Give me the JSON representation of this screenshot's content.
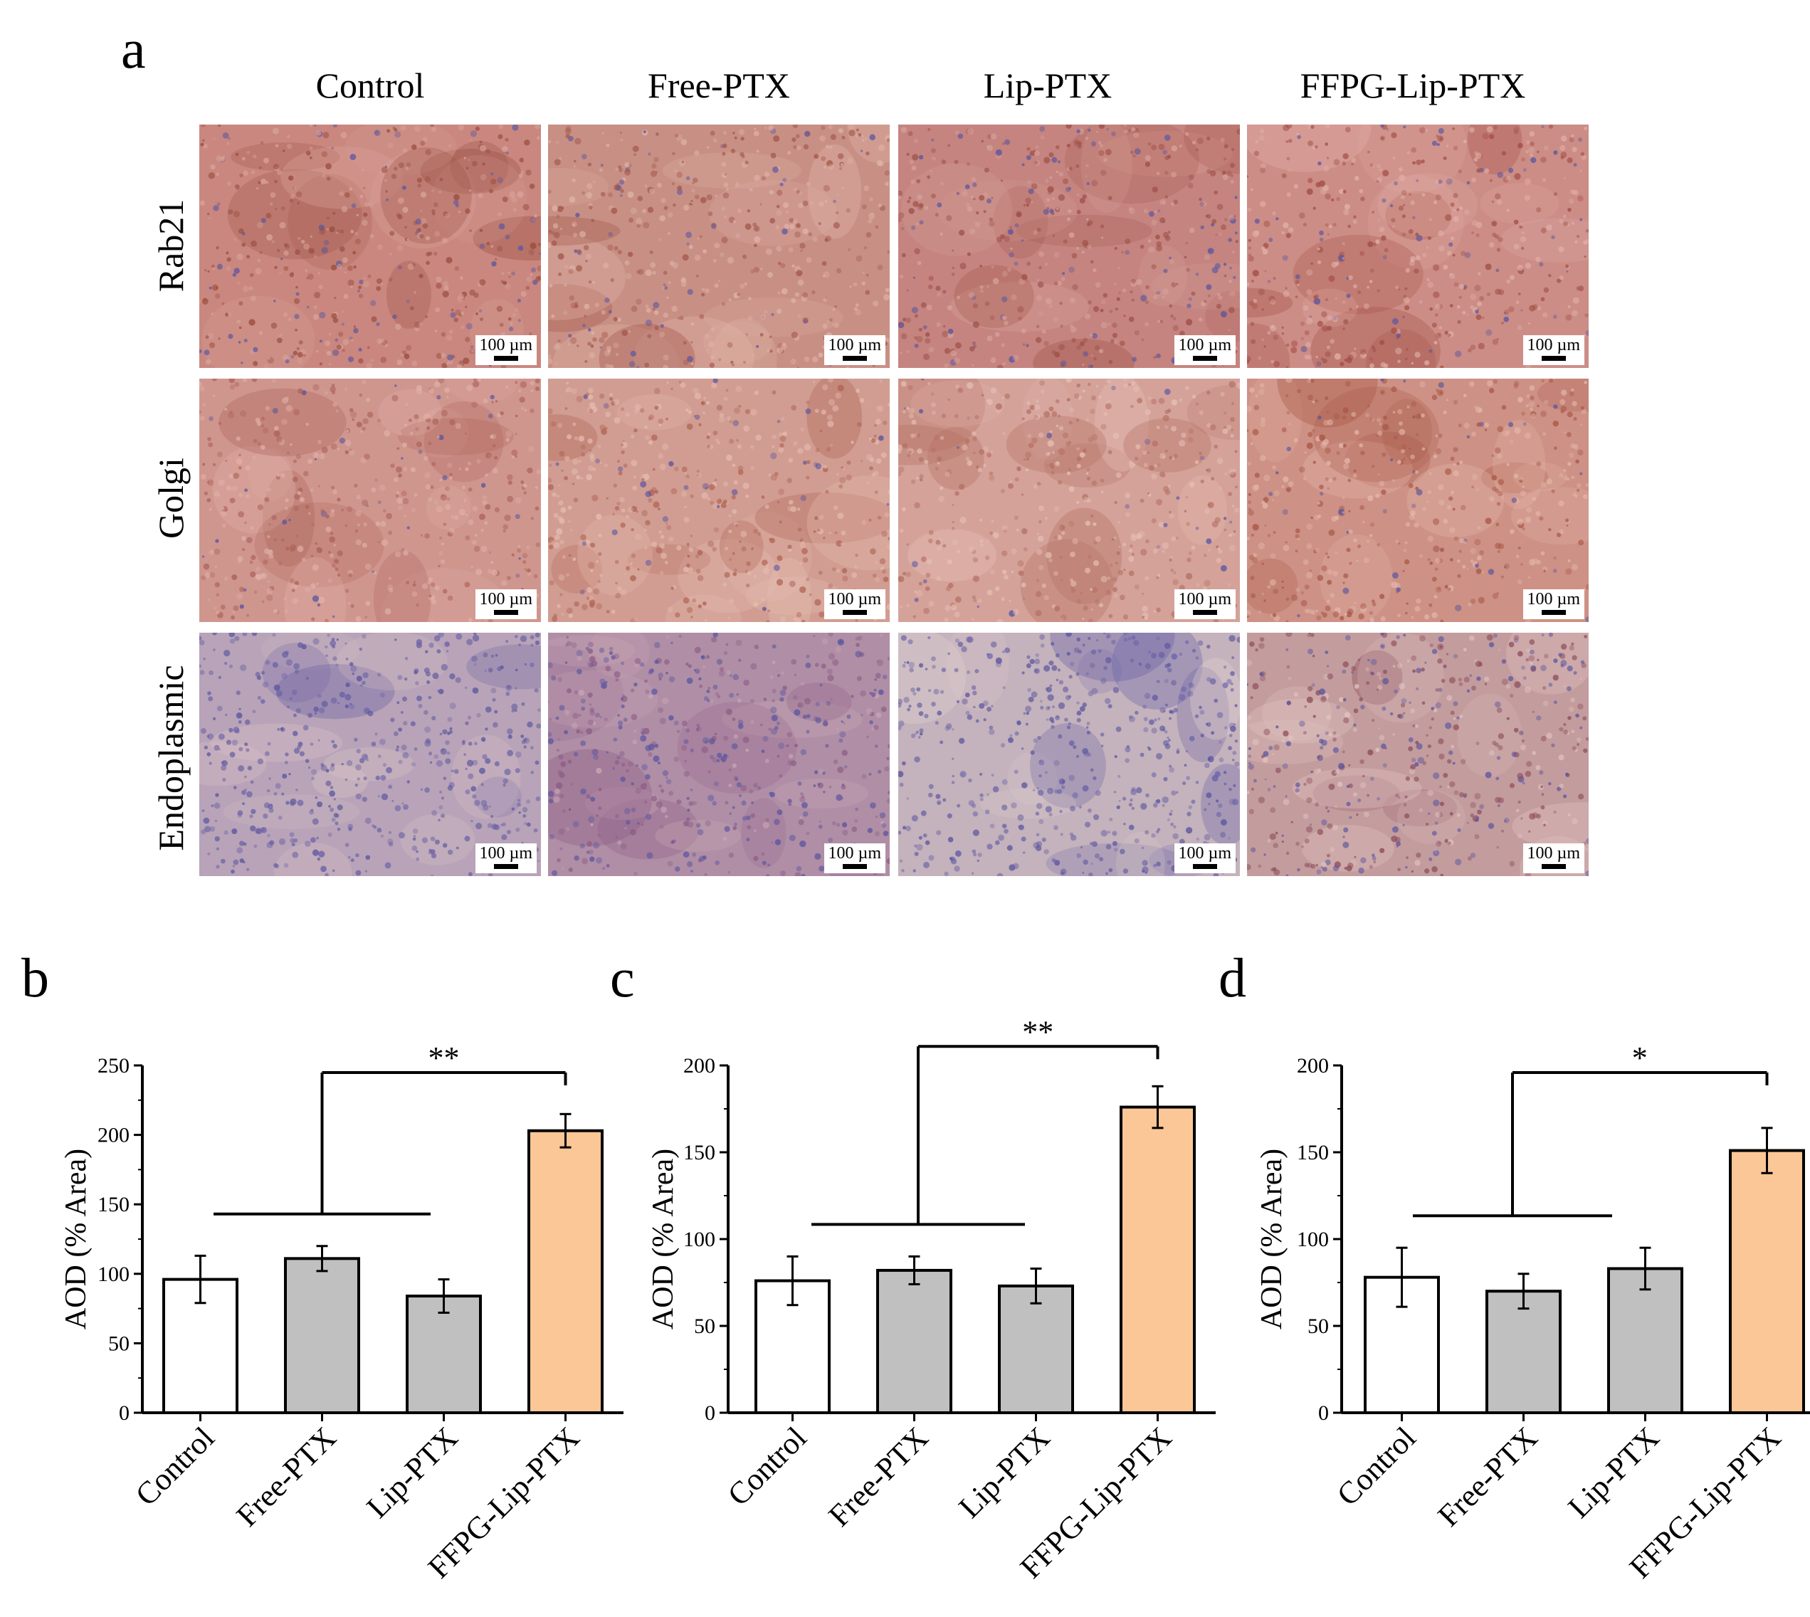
{
  "panel_a": {
    "letter": "a",
    "columns": [
      "Control",
      "Free-PTX",
      "Lip-PTX",
      "FFPG-Lip-PTX"
    ],
    "rows": [
      "Rab21",
      "Golgi",
      "Endoplasmic"
    ],
    "scale_label": "100 µm"
  },
  "chart_data": [
    {
      "panel": "b",
      "type": "bar",
      "categories": [
        "Control",
        "Free-PTX",
        "Lip-PTX",
        "FFPG-Lip-PTX"
      ],
      "values": [
        96,
        111,
        84,
        203
      ],
      "errors": [
        17,
        9,
        12,
        12
      ],
      "bar_colors": [
        "#ffffff",
        "#c0c0c0",
        "#c0c0c0",
        "#fbc796"
      ],
      "ylabel": "AOD (% Area)",
      "ylim": [
        0,
        250
      ],
      "yticks": [
        0,
        50,
        100,
        150,
        200,
        250
      ],
      "significance": "**",
      "grid": false
    },
    {
      "panel": "c",
      "type": "bar",
      "categories": [
        "Control",
        "Free-PTX",
        "Lip-PTX",
        "FFPG-Lip-PTX"
      ],
      "values": [
        76,
        82,
        73,
        176
      ],
      "errors": [
        14,
        8,
        10,
        12
      ],
      "bar_colors": [
        "#ffffff",
        "#c0c0c0",
        "#c0c0c0",
        "#fbc796"
      ],
      "ylabel": "AOD (% Area)",
      "ylim": [
        0,
        200
      ],
      "yticks": [
        0,
        50,
        100,
        150,
        200
      ],
      "significance": "**",
      "grid": false
    },
    {
      "panel": "d",
      "type": "bar",
      "categories": [
        "Control",
        "Free-PTX",
        "Lip-PTX",
        "FFPG-Lip-PTX"
      ],
      "values": [
        78,
        70,
        83,
        151
      ],
      "errors": [
        17,
        10,
        12,
        13
      ],
      "bar_colors": [
        "#ffffff",
        "#c0c0c0",
        "#c0c0c0",
        "#fbc796"
      ],
      "ylabel": "AOD (% Area)",
      "ylim": [
        0,
        200
      ],
      "yticks": [
        0,
        50,
        100,
        150,
        200
      ],
      "significance": "*",
      "grid": false
    }
  ]
}
